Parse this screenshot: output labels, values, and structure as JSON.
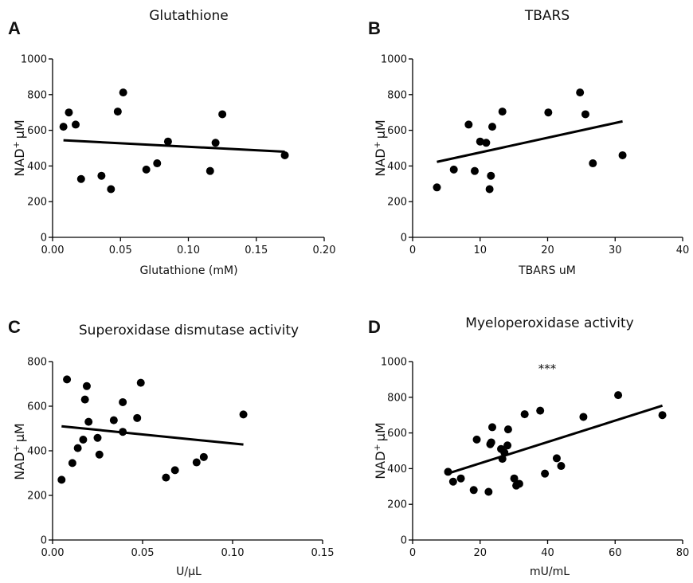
{
  "chart_data": [
    {
      "panel": "A",
      "type": "scatter",
      "title": "Glutathione",
      "xlabel": "Glutathione (mM)",
      "ylabel": "NAD",
      "ylabel_sup": "+",
      "ylabel_unit": "μM",
      "xlim": [
        0,
        0.2
      ],
      "ylim": [
        0,
        1000
      ],
      "xticks": [
        "0.00",
        "0.05",
        "0.10",
        "0.15",
        "0.20"
      ],
      "xtick_values": [
        0,
        0.05,
        0.1,
        0.15,
        0.2
      ],
      "yticks": [
        "0",
        "200",
        "400",
        "600",
        "800",
        "1000"
      ],
      "ytick_values": [
        0,
        200,
        400,
        600,
        800,
        1000
      ],
      "points": [
        {
          "x": 0.008,
          "y": 620
        },
        {
          "x": 0.012,
          "y": 700
        },
        {
          "x": 0.017,
          "y": 632
        },
        {
          "x": 0.021,
          "y": 327
        },
        {
          "x": 0.036,
          "y": 345
        },
        {
          "x": 0.043,
          "y": 270
        },
        {
          "x": 0.048,
          "y": 705
        },
        {
          "x": 0.052,
          "y": 812
        },
        {
          "x": 0.069,
          "y": 380
        },
        {
          "x": 0.077,
          "y": 415
        },
        {
          "x": 0.085,
          "y": 537
        },
        {
          "x": 0.116,
          "y": 372
        },
        {
          "x": 0.12,
          "y": 530
        },
        {
          "x": 0.125,
          "y": 690
        },
        {
          "x": 0.171,
          "y": 460
        }
      ],
      "fit": {
        "x": [
          0.008,
          0.171
        ],
        "y": [
          544,
          480
        ]
      },
      "annotation": ""
    },
    {
      "panel": "B",
      "type": "scatter",
      "title": "TBARS",
      "xlabel": "TBARS uM",
      "ylabel": "NAD",
      "ylabel_sup": "+",
      "ylabel_unit": "μM",
      "xlim": [
        0,
        40
      ],
      "ylim": [
        0,
        1000
      ],
      "xticks": [
        "0",
        "10",
        "20",
        "30",
        "40"
      ],
      "xtick_values": [
        0,
        10,
        20,
        30,
        40
      ],
      "yticks": [
        "0",
        "200",
        "400",
        "600",
        "800",
        "1000"
      ],
      "ytick_values": [
        0,
        200,
        400,
        600,
        800,
        1000
      ],
      "points": [
        {
          "x": 3.6,
          "y": 280
        },
        {
          "x": 6.1,
          "y": 380
        },
        {
          "x": 8.3,
          "y": 632
        },
        {
          "x": 9.2,
          "y": 372
        },
        {
          "x": 10.0,
          "y": 537
        },
        {
          "x": 10.9,
          "y": 530
        },
        {
          "x": 11.4,
          "y": 270
        },
        {
          "x": 11.6,
          "y": 345
        },
        {
          "x": 11.8,
          "y": 620
        },
        {
          "x": 13.3,
          "y": 705
        },
        {
          "x": 20.1,
          "y": 700
        },
        {
          "x": 24.8,
          "y": 812
        },
        {
          "x": 25.6,
          "y": 690
        },
        {
          "x": 26.7,
          "y": 415
        },
        {
          "x": 31.1,
          "y": 460
        }
      ],
      "fit": {
        "x": [
          3.6,
          31.1
        ],
        "y": [
          423,
          650
        ]
      },
      "annotation": ""
    },
    {
      "panel": "C",
      "type": "scatter",
      "title": "Superoxidase dismutase activity",
      "xlabel": "U/μL",
      "ylabel": "NAD",
      "ylabel_sup": "+",
      "ylabel_unit": "μM",
      "xlim": [
        0,
        0.15
      ],
      "ylim": [
        0,
        800
      ],
      "xticks": [
        "0.00",
        "0.05",
        "0.10",
        "0.15"
      ],
      "xtick_values": [
        0,
        0.05,
        0.1,
        0.15
      ],
      "yticks": [
        "0",
        "200",
        "400",
        "600",
        "800"
      ],
      "ytick_values": [
        0,
        200,
        400,
        600,
        800
      ],
      "points": [
        {
          "x": 0.005,
          "y": 270
        },
        {
          "x": 0.008,
          "y": 720
        },
        {
          "x": 0.011,
          "y": 345
        },
        {
          "x": 0.014,
          "y": 412
        },
        {
          "x": 0.017,
          "y": 450
        },
        {
          "x": 0.018,
          "y": 630
        },
        {
          "x": 0.019,
          "y": 690
        },
        {
          "x": 0.02,
          "y": 530
        },
        {
          "x": 0.025,
          "y": 458
        },
        {
          "x": 0.026,
          "y": 383
        },
        {
          "x": 0.034,
          "y": 537
        },
        {
          "x": 0.039,
          "y": 618
        },
        {
          "x": 0.039,
          "y": 485
        },
        {
          "x": 0.047,
          "y": 547
        },
        {
          "x": 0.049,
          "y": 705
        },
        {
          "x": 0.063,
          "y": 280
        },
        {
          "x": 0.068,
          "y": 313
        },
        {
          "x": 0.08,
          "y": 348
        },
        {
          "x": 0.084,
          "y": 372
        },
        {
          "x": 0.106,
          "y": 563
        }
      ],
      "fit": {
        "x": [
          0.005,
          0.106
        ],
        "y": [
          510,
          428
        ]
      },
      "annotation": ""
    },
    {
      "panel": "D",
      "type": "scatter",
      "title": "Myeloperoxidase activity",
      "xlabel": "mU/mL",
      "ylabel": "NAD",
      "ylabel_sup": "+",
      "ylabel_unit": "μM",
      "xlim": [
        0,
        80
      ],
      "ylim": [
        0,
        1000
      ],
      "xticks": [
        "0",
        "20",
        "40",
        "60",
        "80"
      ],
      "xtick_values": [
        0,
        20,
        40,
        60,
        80
      ],
      "yticks": [
        "0",
        "200",
        "400",
        "600",
        "800",
        "1000"
      ],
      "ytick_values": [
        0,
        200,
        400,
        600,
        800,
        1000
      ],
      "points": [
        {
          "x": 10.5,
          "y": 382
        },
        {
          "x": 12.0,
          "y": 327
        },
        {
          "x": 14.3,
          "y": 345
        },
        {
          "x": 18.1,
          "y": 280
        },
        {
          "x": 19.0,
          "y": 563
        },
        {
          "x": 22.5,
          "y": 270
        },
        {
          "x": 23.0,
          "y": 537
        },
        {
          "x": 23.3,
          "y": 547
        },
        {
          "x": 23.6,
          "y": 632
        },
        {
          "x": 26.2,
          "y": 510
        },
        {
          "x": 26.6,
          "y": 455
        },
        {
          "x": 27.2,
          "y": 490
        },
        {
          "x": 28.1,
          "y": 530
        },
        {
          "x": 28.3,
          "y": 620
        },
        {
          "x": 30.1,
          "y": 345
        },
        {
          "x": 30.7,
          "y": 305
        },
        {
          "x": 31.6,
          "y": 315
        },
        {
          "x": 33.2,
          "y": 705
        },
        {
          "x": 37.8,
          "y": 725
        },
        {
          "x": 39.2,
          "y": 372
        },
        {
          "x": 42.7,
          "y": 458
        },
        {
          "x": 44.0,
          "y": 415
        },
        {
          "x": 50.6,
          "y": 690
        },
        {
          "x": 60.9,
          "y": 812
        },
        {
          "x": 74.0,
          "y": 700
        }
      ],
      "fit": {
        "x": [
          10.5,
          74.0
        ],
        "y": [
          373,
          753
        ]
      },
      "annotation": "***"
    }
  ]
}
